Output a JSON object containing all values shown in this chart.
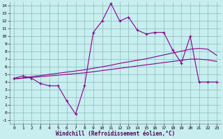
{
  "bg_color": "#c8eef0",
  "line_color": "#880088",
  "grid_color": "#88bbbb",
  "xlim": [
    -0.5,
    23.5
  ],
  "ylim": [
    -1.5,
    14.5
  ],
  "yticks": [
    -1,
    0,
    1,
    2,
    3,
    4,
    5,
    6,
    7,
    8,
    9,
    10,
    11,
    12,
    13,
    14
  ],
  "xticks": [
    0,
    1,
    2,
    3,
    4,
    5,
    6,
    7,
    8,
    9,
    10,
    11,
    12,
    13,
    14,
    15,
    16,
    17,
    18,
    19,
    20,
    21,
    22,
    23
  ],
  "xlabel": "Windchill (Refroidissement éolien,°C)",
  "main_x": [
    0,
    1,
    2,
    3,
    4,
    5,
    6,
    7,
    8,
    9,
    10,
    11,
    12,
    13,
    14,
    15,
    16,
    17,
    18,
    19,
    20,
    21,
    22,
    23
  ],
  "main_y": [
    4.5,
    4.8,
    4.5,
    3.8,
    3.5,
    3.5,
    1.5,
    -0.2,
    3.5,
    10.5,
    12.0,
    14.3,
    12.0,
    12.5,
    10.8,
    10.3,
    10.5,
    10.5,
    8.2,
    6.5,
    10.0,
    4.0,
    4.0,
    4.0
  ],
  "line2_x": [
    0,
    1,
    2,
    3,
    4,
    5,
    6,
    7,
    8,
    9,
    10,
    11,
    12,
    13,
    14,
    15,
    16,
    17,
    18,
    19,
    20,
    21,
    22,
    23
  ],
  "line2_y": [
    4.4,
    4.55,
    4.7,
    4.85,
    5.0,
    5.15,
    5.3,
    5.45,
    5.6,
    5.8,
    6.0,
    6.2,
    6.45,
    6.65,
    6.85,
    7.05,
    7.3,
    7.55,
    7.8,
    8.05,
    8.3,
    8.4,
    8.3,
    7.5
  ],
  "line3_x": [
    0,
    1,
    2,
    3,
    4,
    5,
    6,
    7,
    8,
    9,
    10,
    11,
    12,
    13,
    14,
    15,
    16,
    17,
    18,
    19,
    20,
    21,
    22,
    23
  ],
  "line3_y": [
    4.4,
    4.5,
    4.6,
    4.7,
    4.8,
    4.9,
    5.0,
    5.1,
    5.2,
    5.35,
    5.5,
    5.65,
    5.8,
    5.95,
    6.1,
    6.25,
    6.4,
    6.55,
    6.7,
    6.85,
    7.0,
    7.0,
    6.9,
    6.7
  ]
}
